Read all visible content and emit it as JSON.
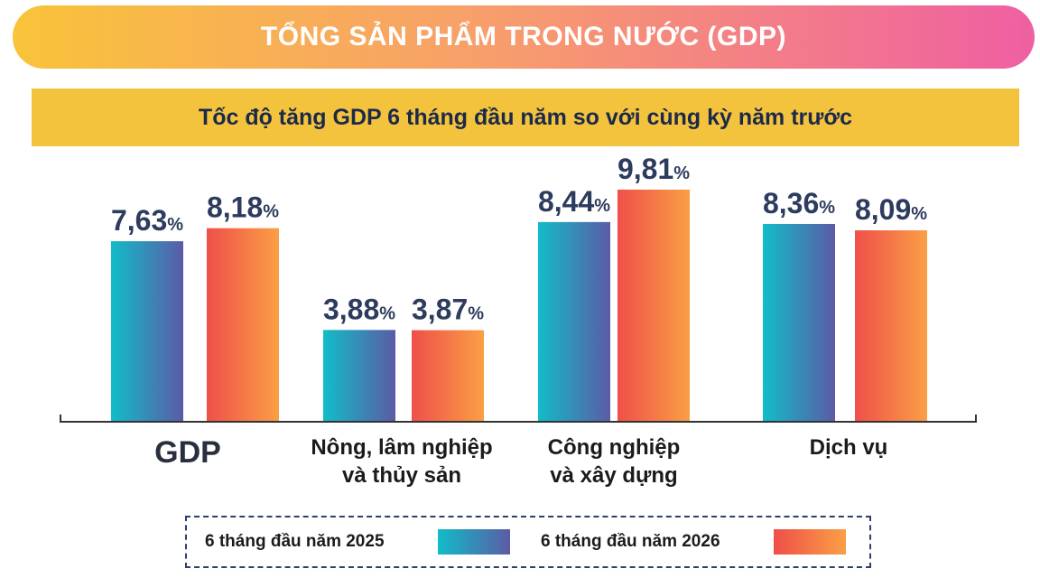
{
  "header": {
    "title": "TỔNG SẢN PHẨM TRONG NƯỚC (GDP)",
    "subtitle": "Tốc độ tăng GDP 6 tháng đầu năm so với cùng kỳ năm trước"
  },
  "chart_data": {
    "type": "bar",
    "title": "Tốc độ tăng GDP 6 tháng đầu năm so với cùng kỳ năm trước",
    "categories": [
      [
        "GDP"
      ],
      [
        "Nông, lâm nghiệp",
        "và thủy sản"
      ],
      [
        "Công nghiệp",
        "và xây dựng"
      ],
      [
        "Dịch vụ"
      ]
    ],
    "series": [
      {
        "name": "6 tháng đầu năm 2025",
        "values": [
          7.63,
          3.88,
          8.44,
          8.36
        ],
        "labels": [
          "7,63",
          "3,88",
          "8,44",
          "8,36"
        ]
      },
      {
        "name": "6 tháng đầu năm 2026",
        "values": [
          8.18,
          3.87,
          9.81,
          8.09
        ],
        "labels": [
          "8,18",
          "3,87",
          "9,81",
          "8,09"
        ]
      }
    ],
    "unit": "%",
    "ylim": [
      0,
      14.1
    ],
    "grid": false,
    "legend_position": "bottom"
  },
  "colors": {
    "series_2025": [
      "#12bcc8",
      "#5b5ba6"
    ],
    "series_2026": [
      "#ef4f4a",
      "#fa9f45"
    ],
    "value_text": "#2d3b5e",
    "axis": "#333333"
  },
  "legend": {
    "label_2025": "6 tháng đầu năm 2025",
    "label_2026": "6 tháng đầu năm 2026"
  }
}
